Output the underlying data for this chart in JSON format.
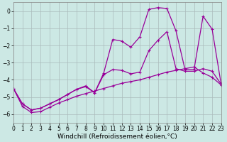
{
  "xlabel": "Windchill (Refroidissement éolien,°C)",
  "bg_color": "#cce8e4",
  "line_color": "#990099",
  "grid_color": "#aabbbb",
  "x_values": [
    0,
    1,
    2,
    3,
    4,
    5,
    6,
    7,
    8,
    9,
    10,
    11,
    12,
    13,
    14,
    15,
    16,
    17,
    18,
    19,
    20,
    21,
    22,
    23
  ],
  "line_bottom": [
    -4.5,
    -5.55,
    -5.9,
    -5.85,
    -5.6,
    -5.35,
    -5.15,
    -4.95,
    -4.8,
    -4.65,
    -4.5,
    -4.35,
    -4.2,
    -4.1,
    -4.0,
    -3.85,
    -3.7,
    -3.55,
    -3.45,
    -3.35,
    -3.25,
    -3.6,
    -3.85,
    -4.3
  ],
  "line_mid": [
    -4.5,
    -5.4,
    -5.75,
    -5.65,
    -5.4,
    -5.15,
    -4.85,
    -4.55,
    -4.4,
    -4.75,
    -3.7,
    -3.4,
    -3.45,
    -3.65,
    -3.55,
    -2.3,
    -1.7,
    -1.2,
    -3.35,
    -3.5,
    -3.5,
    -3.35,
    -3.5,
    -4.25
  ],
  "line_top": [
    -4.5,
    -5.4,
    -5.75,
    -5.65,
    -5.4,
    -5.15,
    -4.85,
    -4.55,
    -4.35,
    -4.75,
    -3.6,
    -1.65,
    -1.75,
    -2.1,
    -1.5,
    0.1,
    0.2,
    0.15,
    -1.15,
    -3.4,
    -3.4,
    -0.3,
    -1.05,
    -4.25
  ],
  "xlim": [
    0,
    23
  ],
  "ylim": [
    -6.5,
    0.5
  ],
  "yticks": [
    0,
    -1,
    -2,
    -3,
    -4,
    -5,
    -6
  ],
  "xticks": [
    0,
    1,
    2,
    3,
    4,
    5,
    6,
    7,
    8,
    9,
    10,
    11,
    12,
    13,
    14,
    15,
    16,
    17,
    18,
    19,
    20,
    21,
    22,
    23
  ],
  "marker": "+",
  "markersize": 3,
  "linewidth": 0.9,
  "xlabel_fontsize": 6.5,
  "tick_fontsize": 5.5
}
